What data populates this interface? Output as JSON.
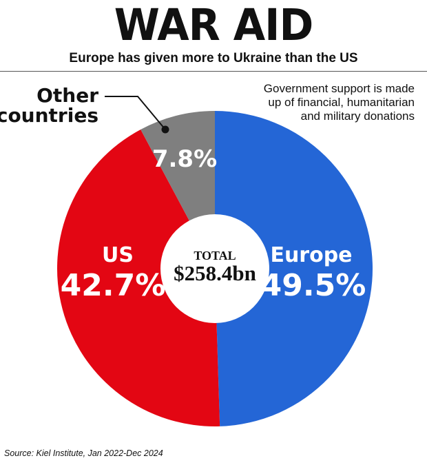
{
  "header": {
    "title": "WAR AID",
    "subtitle": "Europe has given more to Ukraine than the US"
  },
  "note": "Government support is made up of financial, humanitarian and military donations",
  "source": "Source: Kiel Institute, Jan 2022-Dec 2024",
  "center": {
    "label": "TOTAL",
    "value": "$258.4bn"
  },
  "colors": {
    "europe": "#2466d6",
    "us": "#e30613",
    "other": "#7f7f7f"
  },
  "chart_data": {
    "type": "pie",
    "unit": "%",
    "slices": [
      {
        "name": "Europe",
        "value": 49.5,
        "label": "49.5%"
      },
      {
        "name": "US",
        "value": 42.7,
        "label": "42.7%"
      },
      {
        "name": "Other countries",
        "value": 7.8,
        "label": "7.8%"
      }
    ]
  }
}
